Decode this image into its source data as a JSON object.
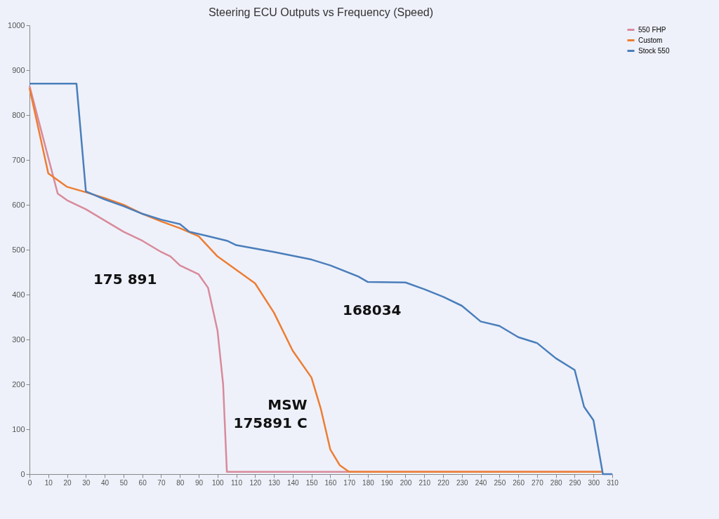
{
  "chart_data": {
    "type": "line",
    "title": "Steering ECU Outputs vs Frequency (Speed)",
    "xlim": [
      0,
      310
    ],
    "xticks": [
      0,
      10,
      20,
      30,
      40,
      50,
      60,
      70,
      80,
      90,
      100,
      110,
      120,
      130,
      140,
      150,
      160,
      170,
      180,
      190,
      200,
      210,
      220,
      230,
      240,
      250,
      260,
      270,
      280,
      290,
      300,
      310
    ],
    "ylim": [
      0,
      1000
    ],
    "yticks": [
      0,
      100,
      200,
      300,
      400,
      500,
      600,
      700,
      800,
      900,
      1000
    ],
    "grid": false,
    "legend": "right",
    "series": [
      {
        "name": "550 FHP",
        "color": "#d98a9a",
        "x": [
          0,
          15,
          20,
          30,
          40,
          50,
          60,
          70,
          75,
          80,
          90,
          95,
          100,
          103,
          105,
          305
        ],
        "values": [
          865,
          625,
          610,
          590,
          565,
          540,
          520,
          495,
          485,
          465,
          445,
          415,
          320,
          200,
          5,
          5
        ]
      },
      {
        "name": "Custom",
        "color": "#ed7d31",
        "x": [
          0,
          10,
          20,
          30,
          40,
          50,
          60,
          70,
          80,
          90,
          100,
          110,
          120,
          130,
          140,
          150,
          155,
          160,
          165,
          170,
          305
        ],
        "values": [
          860,
          670,
          640,
          628,
          615,
          600,
          580,
          563,
          548,
          530,
          485,
          455,
          425,
          360,
          275,
          215,
          145,
          55,
          20,
          5,
          5
        ]
      },
      {
        "name": "Stock 550",
        "color": "#4a7ebb",
        "x": [
          0,
          25,
          30,
          40,
          50,
          60,
          70,
          80,
          85,
          95,
          105,
          110,
          130,
          150,
          160,
          175,
          180,
          200,
          210,
          220,
          230,
          240,
          250,
          260,
          270,
          280,
          290,
          295,
          300,
          305,
          310
        ],
        "values": [
          870,
          870,
          630,
          612,
          597,
          580,
          567,
          557,
          540,
          530,
          520,
          510,
          495,
          478,
          465,
          440,
          428,
          427,
          412,
          395,
          375,
          340,
          330,
          305,
          292,
          258,
          232,
          150,
          120,
          0,
          0
        ]
      }
    ],
    "annotations": [
      {
        "text": "175 891",
        "x": 70,
        "y": 495
      },
      {
        "text": "168034",
        "x": 200,
        "y": 427
      },
      {
        "text": "MSW",
        "x": 150,
        "y": 215
      },
      {
        "text": "175891 C",
        "x": 150,
        "y": 215
      }
    ]
  }
}
